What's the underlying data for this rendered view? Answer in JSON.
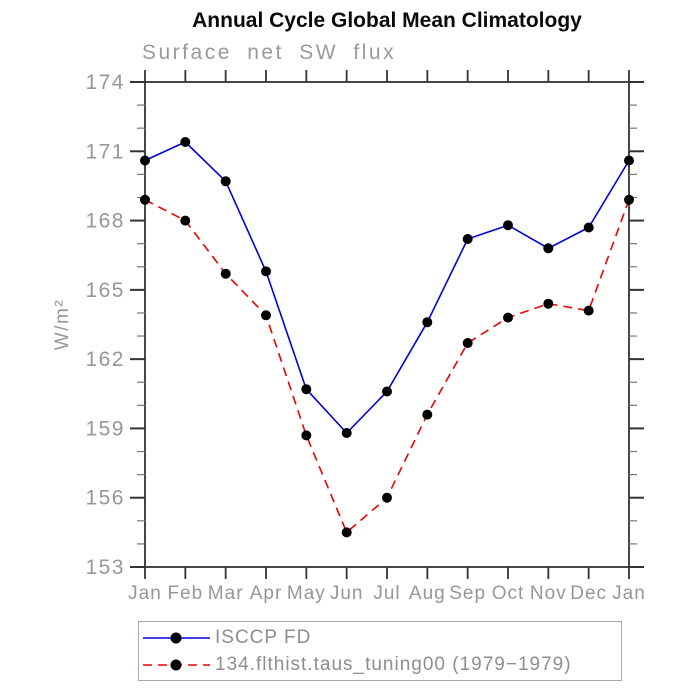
{
  "header": {
    "title": "Annual Cycle Global Mean Climatology",
    "subtitle": "Surface net SW flux"
  },
  "chart_data": {
    "type": "line",
    "title": "Annual Cycle Global Mean Climatology",
    "subtitle": "Surface net SW flux",
    "xlabel": "",
    "ylabel": "W/m²",
    "x_tick_labels": [
      "Jan",
      "Feb",
      "Mar",
      "Apr",
      "May",
      "Jun",
      "Jul",
      "Aug",
      "Sep",
      "Oct",
      "Nov",
      "Dec",
      "Jan"
    ],
    "ylim": [
      153,
      174
    ],
    "ytick_step": 3,
    "minor_ytick_step": 1,
    "yticks": [
      153,
      156,
      159,
      162,
      165,
      168,
      171,
      174
    ],
    "grid": false,
    "legend_position": "bottom-box",
    "axis_color": "#333333",
    "label_color": "#979797",
    "series": [
      {
        "name": "ISCCP FD",
        "color": "#0000dd",
        "line_style": "solid",
        "marker": "filled-black-circle",
        "values": [
          170.6,
          171.4,
          169.7,
          165.8,
          160.7,
          158.8,
          160.6,
          163.6,
          167.2,
          167.8,
          166.8,
          167.7,
          170.6
        ]
      },
      {
        "name": "134.flthist.taus_tuning00 (1979−1979)",
        "color": "#ee0000",
        "line_style": "dashed",
        "marker": "filled-black-circle",
        "values": [
          168.9,
          168.0,
          165.7,
          163.9,
          158.7,
          154.5,
          156.0,
          159.6,
          162.7,
          163.8,
          164.4,
          164.1,
          168.9
        ]
      }
    ]
  }
}
